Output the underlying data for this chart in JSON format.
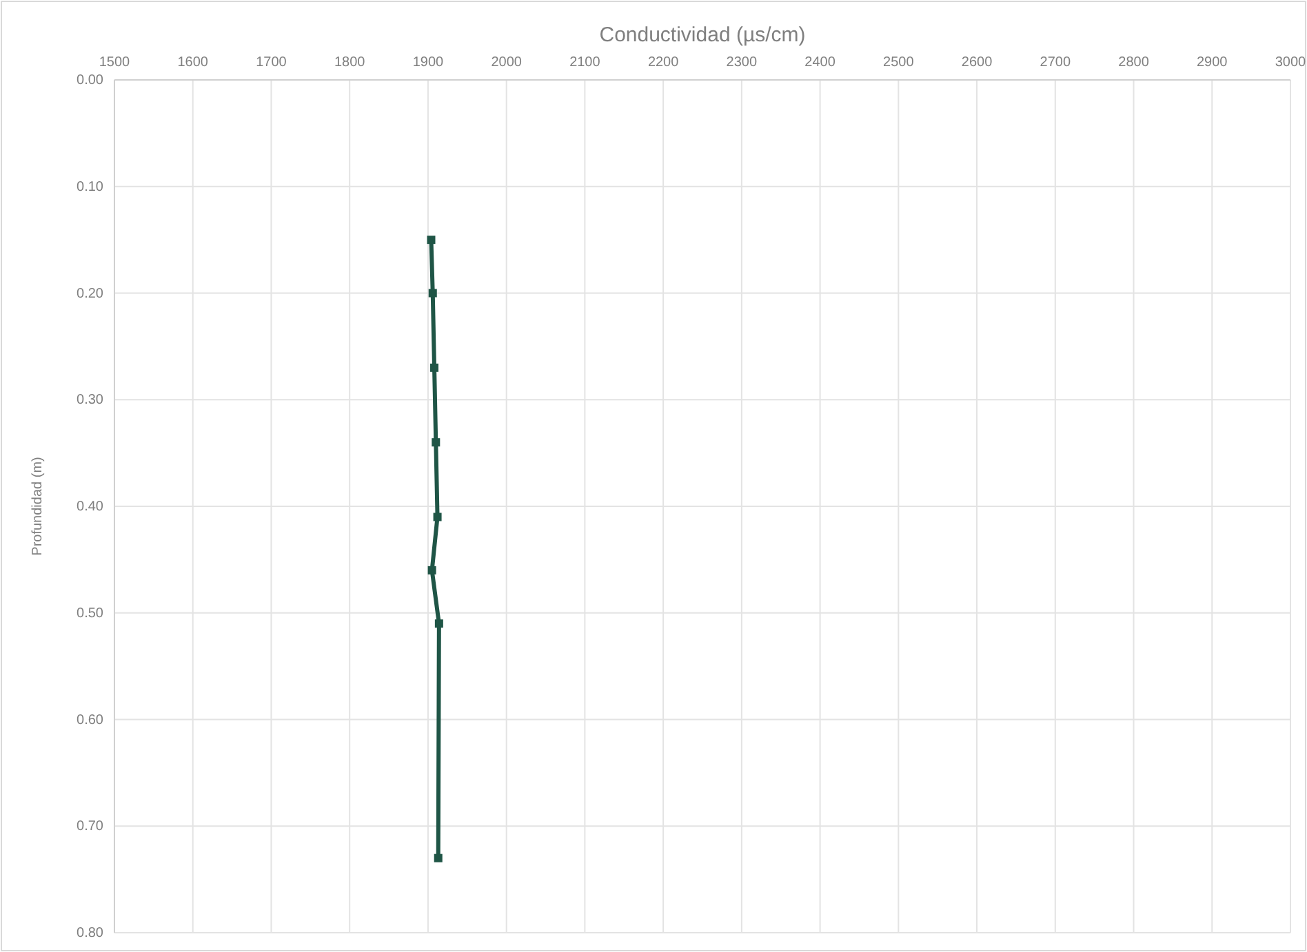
{
  "chart_data": {
    "type": "line",
    "xlabel": "Conductividad (µs/cm)",
    "ylabel": "Profundidad (m)",
    "x": [
      1904,
      1906,
      1908,
      1910,
      1912,
      1905,
      1914,
      1913
    ],
    "series": [
      {
        "color": "#1f5546",
        "values": [
          0.15,
          0.2,
          0.27,
          0.34,
          0.41,
          0.46,
          0.51,
          0.73
        ]
      }
    ],
    "xlim": [
      1500,
      3000
    ],
    "xticks": [
      1500,
      1600,
      1700,
      1800,
      1900,
      2000,
      2100,
      2200,
      2300,
      2400,
      2500,
      2600,
      2700,
      2800,
      2900,
      3000
    ],
    "ylim": [
      0.8,
      0
    ],
    "yticks": [
      {
        "value": 0,
        "label": "0.00"
      },
      {
        "value": 0.1,
        "label": "0.10"
      },
      {
        "value": 0.2,
        "label": "0.20"
      },
      {
        "value": 0.3,
        "label": "0.30"
      },
      {
        "value": 0.4,
        "label": "0.40"
      },
      {
        "value": 0.5,
        "label": "0.50"
      },
      {
        "value": 0.6,
        "label": "0.60"
      },
      {
        "value": 0.7,
        "label": "0.70"
      },
      {
        "value": 0.8,
        "label": "0.80"
      }
    ],
    "grid": true,
    "marker": "square",
    "line_style": "solid"
  }
}
